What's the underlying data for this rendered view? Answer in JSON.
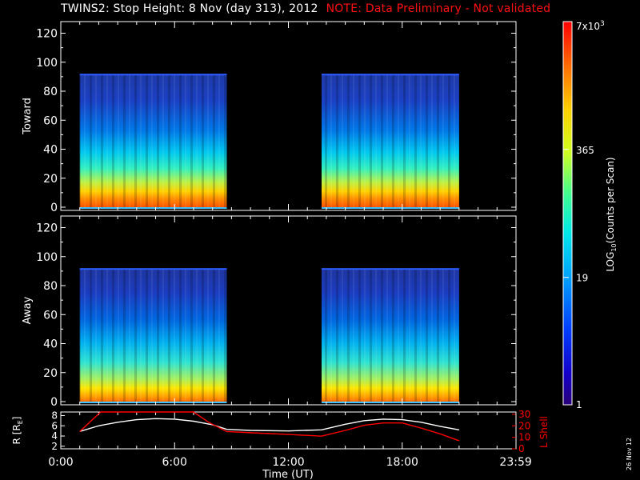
{
  "title": {
    "main": "TWINS2: Stop Height:  8 Nov (day 313), 2012",
    "note": "NOTE: Data Preliminary - Not validated"
  },
  "stamp": "26 Nov 12",
  "colors": {
    "note": "#ff1010",
    "background": "#000000",
    "axes": "#ffffff",
    "r_line": "#ffffff",
    "lshell_line": "#ff0000"
  },
  "chart_data": [
    {
      "type": "heatmap",
      "panel": "Toward",
      "ylabel": "Toward",
      "ylim": [
        0,
        128
      ],
      "yticks": [
        "0",
        "20",
        "40",
        "60",
        "80",
        "100",
        "120"
      ],
      "x_range": [
        "0:00",
        "23:59"
      ],
      "data_segments": [
        {
          "start": "1:00",
          "end": "8:45",
          "max_height": 92
        },
        {
          "start": "13:45",
          "end": "21:00",
          "max_height": 92
        }
      ],
      "profile": "highest counts near heights 0-15 (red/orange), decreasing through yellow/cyan to blue at ~90"
    },
    {
      "type": "heatmap",
      "panel": "Away",
      "ylabel": "Away",
      "ylim": [
        0,
        128
      ],
      "yticks": [
        "0",
        "20",
        "40",
        "60",
        "80",
        "100",
        "120"
      ],
      "x_range": [
        "0:00",
        "23:59"
      ],
      "data_segments": [
        {
          "start": "1:00",
          "end": "8:45",
          "max_height": 92
        },
        {
          "start": "13:45",
          "end": "21:00",
          "max_height": 92
        }
      ],
      "profile": "highest counts near heights 0-10 (red/orange), decreasing through yellow/cyan to blue at ~90"
    },
    {
      "type": "line",
      "panel": "orbit",
      "xlabel": "Time (UT)",
      "xticks": [
        "0:00",
        "6:00",
        "12:00",
        "18:00",
        "23:59"
      ],
      "left_axis": {
        "label": "R [R",
        "label_sub": "E",
        "label_end": "]",
        "ylim": [
          1.5,
          8.7
        ],
        "ticks": [
          "2",
          "4",
          "6",
          "8"
        ]
      },
      "right_axis": {
        "label": "L Shell",
        "ylim": [
          0,
          32
        ],
        "ticks": [
          "0",
          "10",
          "20",
          "30"
        ]
      },
      "series": [
        {
          "axis": "left",
          "x": [
            1.0,
            2.0,
            3.0,
            4.0,
            5.0,
            6.0,
            7.0,
            8.0,
            8.75,
            10.0,
            12.0,
            13.75,
            15.0,
            16.0,
            17.0,
            18.0,
            19.0,
            20.0,
            21.0
          ],
          "y": [
            4.9,
            6.0,
            6.7,
            7.2,
            7.4,
            7.3,
            6.9,
            6.2,
            5.3,
            5.1,
            5.0,
            5.2,
            6.3,
            7.0,
            7.3,
            7.2,
            6.7,
            5.9,
            5.2
          ]
        },
        {
          "axis": "right",
          "x": [
            1.0,
            2.1,
            7.0,
            7.8,
            8.75,
            10.0,
            12.0,
            13.75,
            15.0,
            16.0,
            17.0,
            18.0,
            19.0,
            20.0,
            21.0
          ],
          "y": [
            15,
            32,
            32,
            23,
            15,
            14,
            12.5,
            11,
            16,
            20.5,
            22.5,
            22.5,
            18,
            13,
            7
          ]
        }
      ]
    }
  ],
  "colorbar": {
    "label": "LOG10(Counts per Scan)",
    "label_parts": {
      "pre": "LOG",
      "sub": "10",
      "post": "(Counts per Scan)"
    },
    "scale": "log",
    "range": [
      1,
      7000
    ],
    "ticks": [
      {
        "value": 1,
        "label": "1"
      },
      {
        "value": 19,
        "label": "19"
      },
      {
        "value": 365,
        "label": "365"
      },
      {
        "value": 7000,
        "label": "7x10",
        "exp": "3"
      }
    ]
  }
}
